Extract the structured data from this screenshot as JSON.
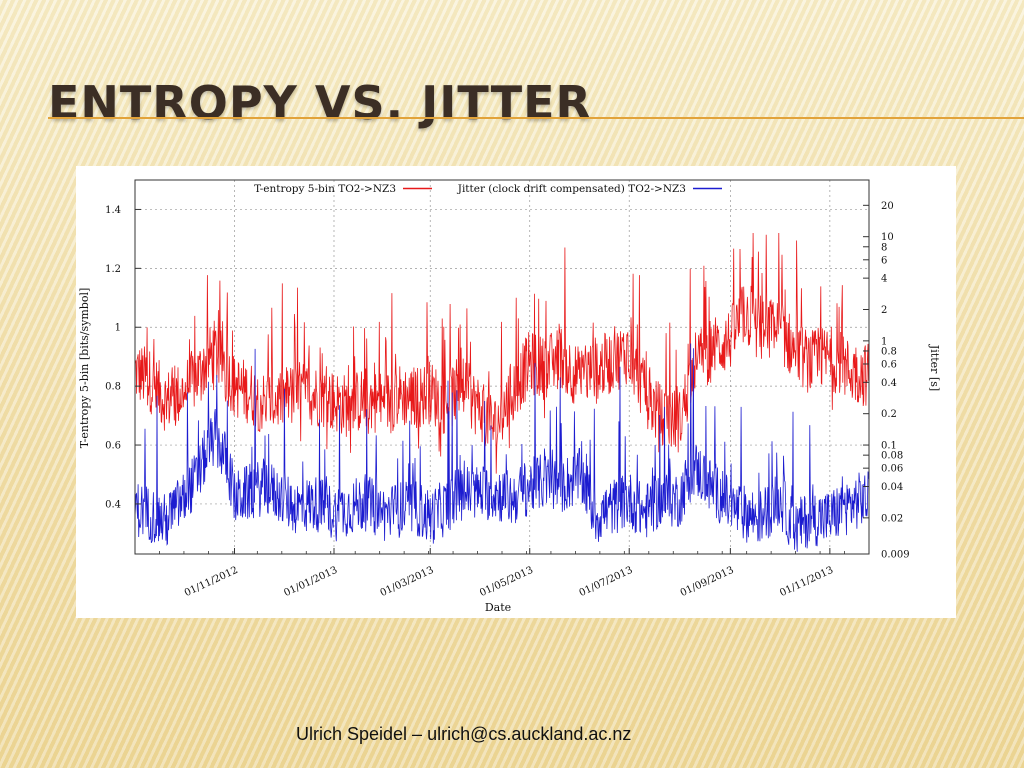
{
  "slide": {
    "title": "ENTROPY VS. JITTER",
    "footer": "Ulrich Speidel – ulrich@cs.auckland.ac.nz"
  },
  "colors": {
    "title": "#3b2e25",
    "accent_rule": "#e2a33a",
    "entropy_series": "#e8191a",
    "jitter_series": "#1c1cd0"
  },
  "chart_data": {
    "type": "line",
    "xlabel": "Date",
    "ylabel_left": "T-entropy 5-bin [bits/symbol]",
    "ylabel_right": "Jitter [s]",
    "x_ticks": [
      "01/11/2012",
      "01/01/2013",
      "01/03/2013",
      "01/05/2013",
      "01/07/2013",
      "01/09/2013",
      "01/11/2013"
    ],
    "x_range": [
      "2012-09-01",
      "2013-11-25"
    ],
    "y_left": {
      "range": [
        0.23,
        1.5
      ],
      "ticks": [
        "0.4",
        "0.6",
        "0.8",
        "1",
        "1.2",
        "1.4"
      ]
    },
    "y_right": {
      "scale": "log",
      "range": [
        0.009,
        35
      ],
      "ticks": [
        "0.009",
        "0.02",
        "0.04",
        "0.06",
        "0.08",
        "0.1",
        "0.2",
        "0.4",
        "0.6",
        "0.8",
        "1",
        "2",
        "4",
        "6",
        "8",
        "10",
        "20"
      ]
    },
    "grid": true,
    "legend_position": "top",
    "series": [
      {
        "name": "T-entropy 5-bin TO2->NZ3",
        "axis": "left",
        "x": [
          "2012-09-01",
          "2012-09-10",
          "2012-09-20",
          "2012-10-01",
          "2012-10-10",
          "2012-10-20",
          "2012-11-01",
          "2012-11-10",
          "2012-11-20",
          "2012-12-01",
          "2012-12-10",
          "2012-12-20",
          "2013-01-01",
          "2013-01-10",
          "2013-01-20",
          "2013-02-01",
          "2013-02-10",
          "2013-02-20",
          "2013-03-01",
          "2013-03-10",
          "2013-03-20",
          "2013-04-01",
          "2013-04-10",
          "2013-04-20",
          "2013-05-01",
          "2013-05-10",
          "2013-05-20",
          "2013-06-01",
          "2013-06-10",
          "2013-06-20",
          "2013-07-01",
          "2013-07-10",
          "2013-07-20",
          "2013-08-01",
          "2013-08-10",
          "2013-08-20",
          "2013-09-01",
          "2013-09-10",
          "2013-09-20",
          "2013-10-01",
          "2013-10-10",
          "2013-10-20",
          "2013-11-01",
          "2013-11-10",
          "2013-11-20"
        ],
        "values": [
          0.85,
          0.82,
          0.75,
          0.78,
          0.84,
          0.92,
          0.8,
          0.78,
          0.74,
          0.76,
          0.78,
          0.77,
          0.75,
          0.73,
          0.76,
          0.74,
          0.77,
          0.76,
          0.78,
          0.74,
          0.8,
          0.72,
          0.66,
          0.78,
          0.88,
          0.86,
          0.9,
          0.82,
          0.86,
          0.88,
          0.92,
          0.78,
          0.7,
          0.68,
          0.88,
          0.92,
          0.96,
          1.05,
          0.98,
          1.0,
          0.92,
          0.88,
          0.9,
          0.86,
          0.84
        ]
      },
      {
        "name": "Jitter (clock drift compensated) TO2->NZ3",
        "axis": "right",
        "x": [
          "2012-09-01",
          "2012-09-10",
          "2012-09-20",
          "2012-10-01",
          "2012-10-10",
          "2012-10-20",
          "2012-11-01",
          "2012-11-10",
          "2012-11-20",
          "2012-12-01",
          "2012-12-10",
          "2012-12-20",
          "2013-01-01",
          "2013-01-10",
          "2013-01-20",
          "2013-02-01",
          "2013-02-10",
          "2013-02-20",
          "2013-03-01",
          "2013-03-10",
          "2013-03-20",
          "2013-04-01",
          "2013-04-10",
          "2013-04-20",
          "2013-05-01",
          "2013-05-10",
          "2013-05-20",
          "2013-06-01",
          "2013-06-10",
          "2013-06-20",
          "2013-07-01",
          "2013-07-10",
          "2013-07-20",
          "2013-08-01",
          "2013-08-10",
          "2013-08-20",
          "2013-09-01",
          "2013-09-10",
          "2013-09-20",
          "2013-10-01",
          "2013-10-10",
          "2013-10-20",
          "2013-11-01",
          "2013-11-10",
          "2013-11-20"
        ],
        "values": [
          0.025,
          0.022,
          0.018,
          0.03,
          0.05,
          0.12,
          0.03,
          0.035,
          0.04,
          0.03,
          0.025,
          0.028,
          0.022,
          0.025,
          0.028,
          0.022,
          0.024,
          0.025,
          0.02,
          0.025,
          0.035,
          0.035,
          0.035,
          0.03,
          0.04,
          0.045,
          0.04,
          0.05,
          0.02,
          0.025,
          0.03,
          0.022,
          0.03,
          0.03,
          0.06,
          0.04,
          0.025,
          0.022,
          0.02,
          0.03,
          0.015,
          0.02,
          0.02,
          0.025,
          0.03
        ]
      }
    ]
  }
}
